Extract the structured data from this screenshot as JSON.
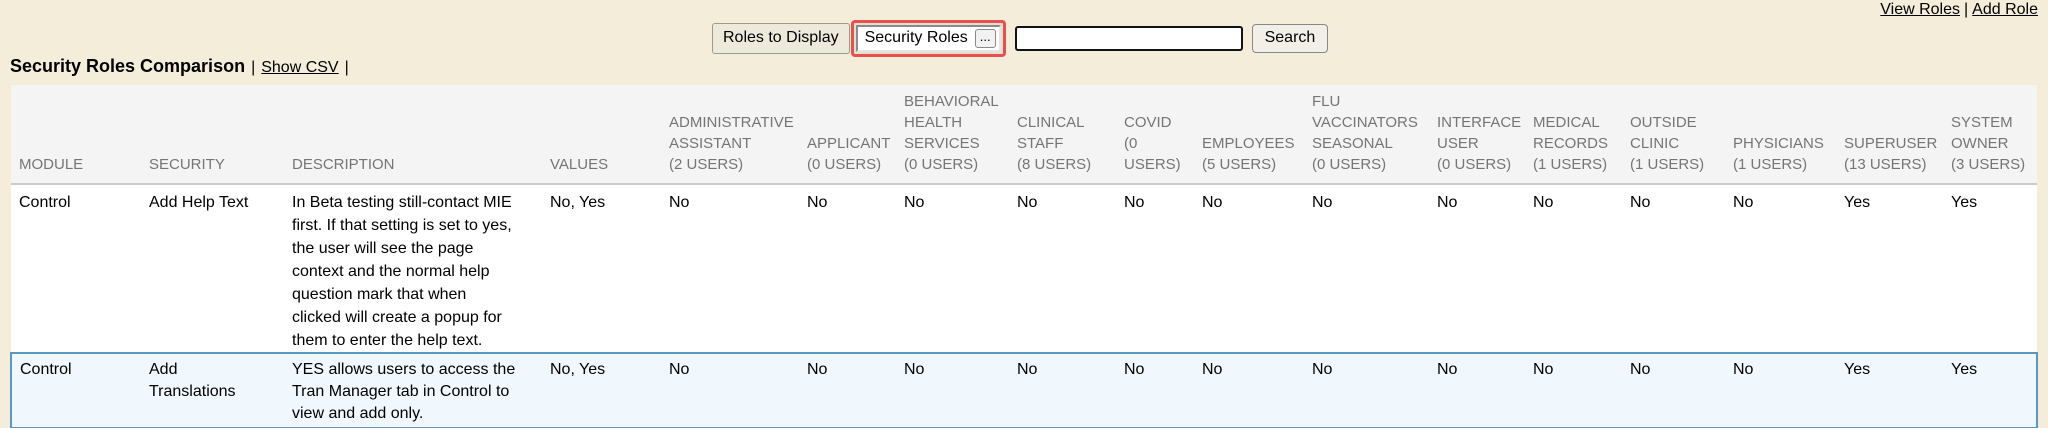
{
  "top_links": {
    "view_roles_label": "View Roles",
    "separator": "|",
    "add_role_label": "Add Role"
  },
  "toolbar": {
    "roles_to_display_label": "Roles to Display",
    "roles_picker_value": "Security Roles",
    "roles_picker_button_label": "...",
    "search_input_value": "",
    "search_button_label": "Search"
  },
  "heading": {
    "title": "Security Roles Comparison",
    "separator": "|",
    "show_csv_label": "Show CSV",
    "trailing_separator": "|"
  },
  "table": {
    "columns": [
      {
        "id": "module",
        "label": "MODULE"
      },
      {
        "id": "security",
        "label": "SECURITY"
      },
      {
        "id": "description",
        "label": "DESCRIPTION"
      },
      {
        "id": "values",
        "label": "VALUES"
      },
      {
        "id": "administrative-assistant",
        "label": "ADMINISTRATIVE\nASSISTANT\n(2 USERS)"
      },
      {
        "id": "applicant",
        "label": "APPLICANT\n(0 USERS)"
      },
      {
        "id": "behavioral-health-services",
        "label": "BEHAVIORAL\nHEALTH\nSERVICES\n(0 USERS)"
      },
      {
        "id": "clinical-staff",
        "label": "CLINICAL\nSTAFF\n(8 USERS)"
      },
      {
        "id": "covid",
        "label": "COVID\n(0\nUSERS)"
      },
      {
        "id": "employees",
        "label": "EMPLOYEES\n(5 USERS)"
      },
      {
        "id": "flu-vaccinators-seasonal",
        "label": "FLU\nVACCINATORS\nSEASONAL\n(0 USERS)"
      },
      {
        "id": "interface-user",
        "label": "INTERFACE\nUSER\n(0 USERS)"
      },
      {
        "id": "medical-records",
        "label": "MEDICAL\nRECORDS\n(1 USERS)"
      },
      {
        "id": "outside-clinic",
        "label": "OUTSIDE\nCLINIC\n(1 USERS)"
      },
      {
        "id": "physicians",
        "label": "PHYSICIANS\n(1 USERS)"
      },
      {
        "id": "superuser",
        "label": "SUPERUSER\n(13 USERS)"
      },
      {
        "id": "system-owner",
        "label": "SYSTEM\nOWNER\n(3 USERS)"
      }
    ],
    "rows": [
      {
        "module": "Control",
        "security": "Add Help Text",
        "description": "In Beta testing still-contact MIE\nfirst. If that setting is set to yes,\nthe user will see the page\ncontext and the normal help\nquestion mark that when\nclicked will create a popup for\nthem to enter the help text.",
        "values": "No, Yes",
        "role_values": [
          "No",
          "No",
          "No",
          "No",
          "No",
          "No",
          "No",
          "No",
          "No",
          "No",
          "No",
          "Yes",
          "Yes"
        ],
        "highlighted": false
      },
      {
        "module": "Control",
        "security": "Add\nTranslations",
        "description": "YES allows users to access the\nTran Manager tab in Control to\nview and add only.",
        "values": "No, Yes",
        "role_values": [
          "No",
          "No",
          "No",
          "No",
          "No",
          "No",
          "No",
          "No",
          "No",
          "No",
          "No",
          "Yes",
          "Yes"
        ],
        "highlighted": true
      }
    ]
  },
  "colors": {
    "page_background": "#f4edda",
    "table_header_background": "#f4f4f4",
    "table_header_text": "#757575",
    "highlight_row_background": "#f0f8fd",
    "highlight_row_border": "#5b97c4",
    "picker_highlight_border": "#e9504d"
  }
}
